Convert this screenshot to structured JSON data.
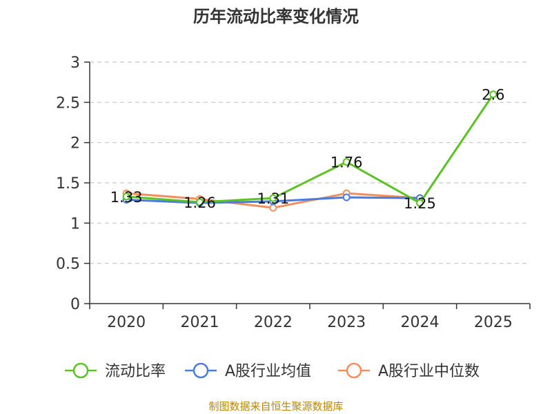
{
  "chart_data": {
    "type": "line",
    "title": "历年流动比率变化情况",
    "categories": [
      "2020",
      "2021",
      "2022",
      "2023",
      "2024",
      "2025"
    ],
    "ylim": [
      0,
      3
    ],
    "yticks": [
      0,
      0.5,
      1,
      1.5,
      2,
      2.5,
      3
    ],
    "ytick_labels": [
      "0",
      "0.5",
      "1",
      "1.5",
      "2",
      "2.5",
      "3"
    ],
    "grid": true,
    "legend_position": "bottom",
    "series": [
      {
        "name": "流动比率",
        "color": "#5bc224",
        "values": [
          1.33,
          1.26,
          1.31,
          1.76,
          1.25,
          2.6
        ],
        "labels": [
          "1.33",
          "1.26",
          "1.31",
          "1.76",
          "1.25",
          "2.6"
        ]
      },
      {
        "name": "A股行业均值",
        "color": "#4a7be0",
        "values": [
          1.29,
          1.25,
          1.27,
          1.32,
          1.31,
          null
        ]
      },
      {
        "name": "A股行业中位数",
        "color": "#f28e5c",
        "values": [
          1.37,
          1.3,
          1.19,
          1.37,
          1.31,
          null
        ]
      }
    ],
    "source": "制图数据来自恒生聚源数据库"
  }
}
